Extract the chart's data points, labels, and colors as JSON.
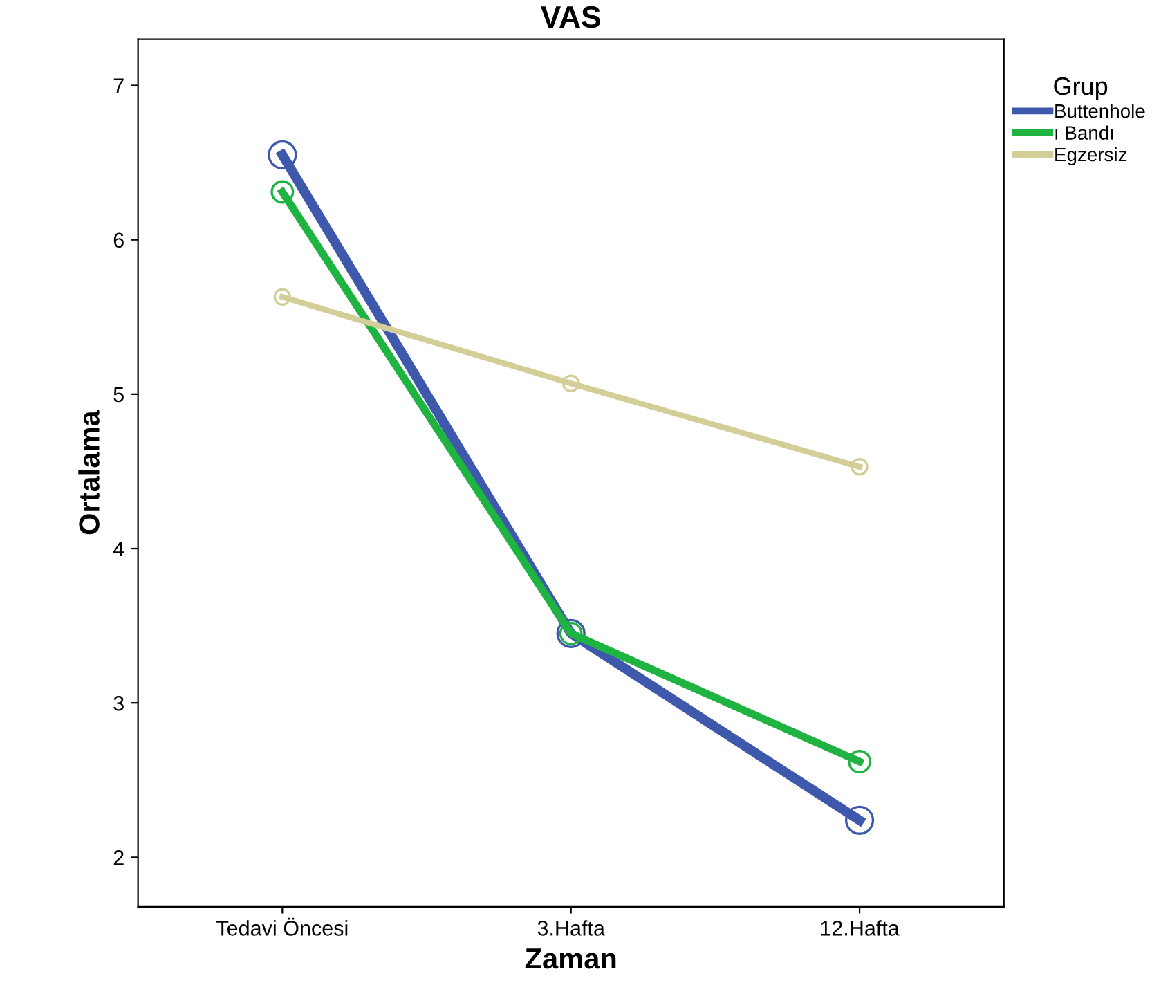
{
  "chart_data": {
    "type": "line",
    "title": "VAS",
    "xlabel": "Zaman",
    "ylabel": "Ortalama",
    "legend_title": "Grup",
    "categories": [
      "Tedavi Öncesi",
      "3.Hafta",
      "12.Hafta"
    ],
    "series": [
      {
        "name": "Buttenhole",
        "color": "#3e58ac",
        "values": [
          6.55,
          3.45,
          2.24
        ]
      },
      {
        "name": "ı Bandı",
        "color": "#1fb441",
        "values": [
          6.31,
          3.45,
          2.62
        ]
      },
      {
        "name": "Egzersiz",
        "color": "#d3ce97",
        "values": [
          5.63,
          5.07,
          4.53
        ]
      }
    ],
    "ylim": [
      1.68,
      7.3
    ],
    "yticks": [
      2,
      3,
      4,
      5,
      6,
      7
    ],
    "grid": false,
    "legend": "top right",
    "marker": "circle",
    "line_style": "solid"
  }
}
